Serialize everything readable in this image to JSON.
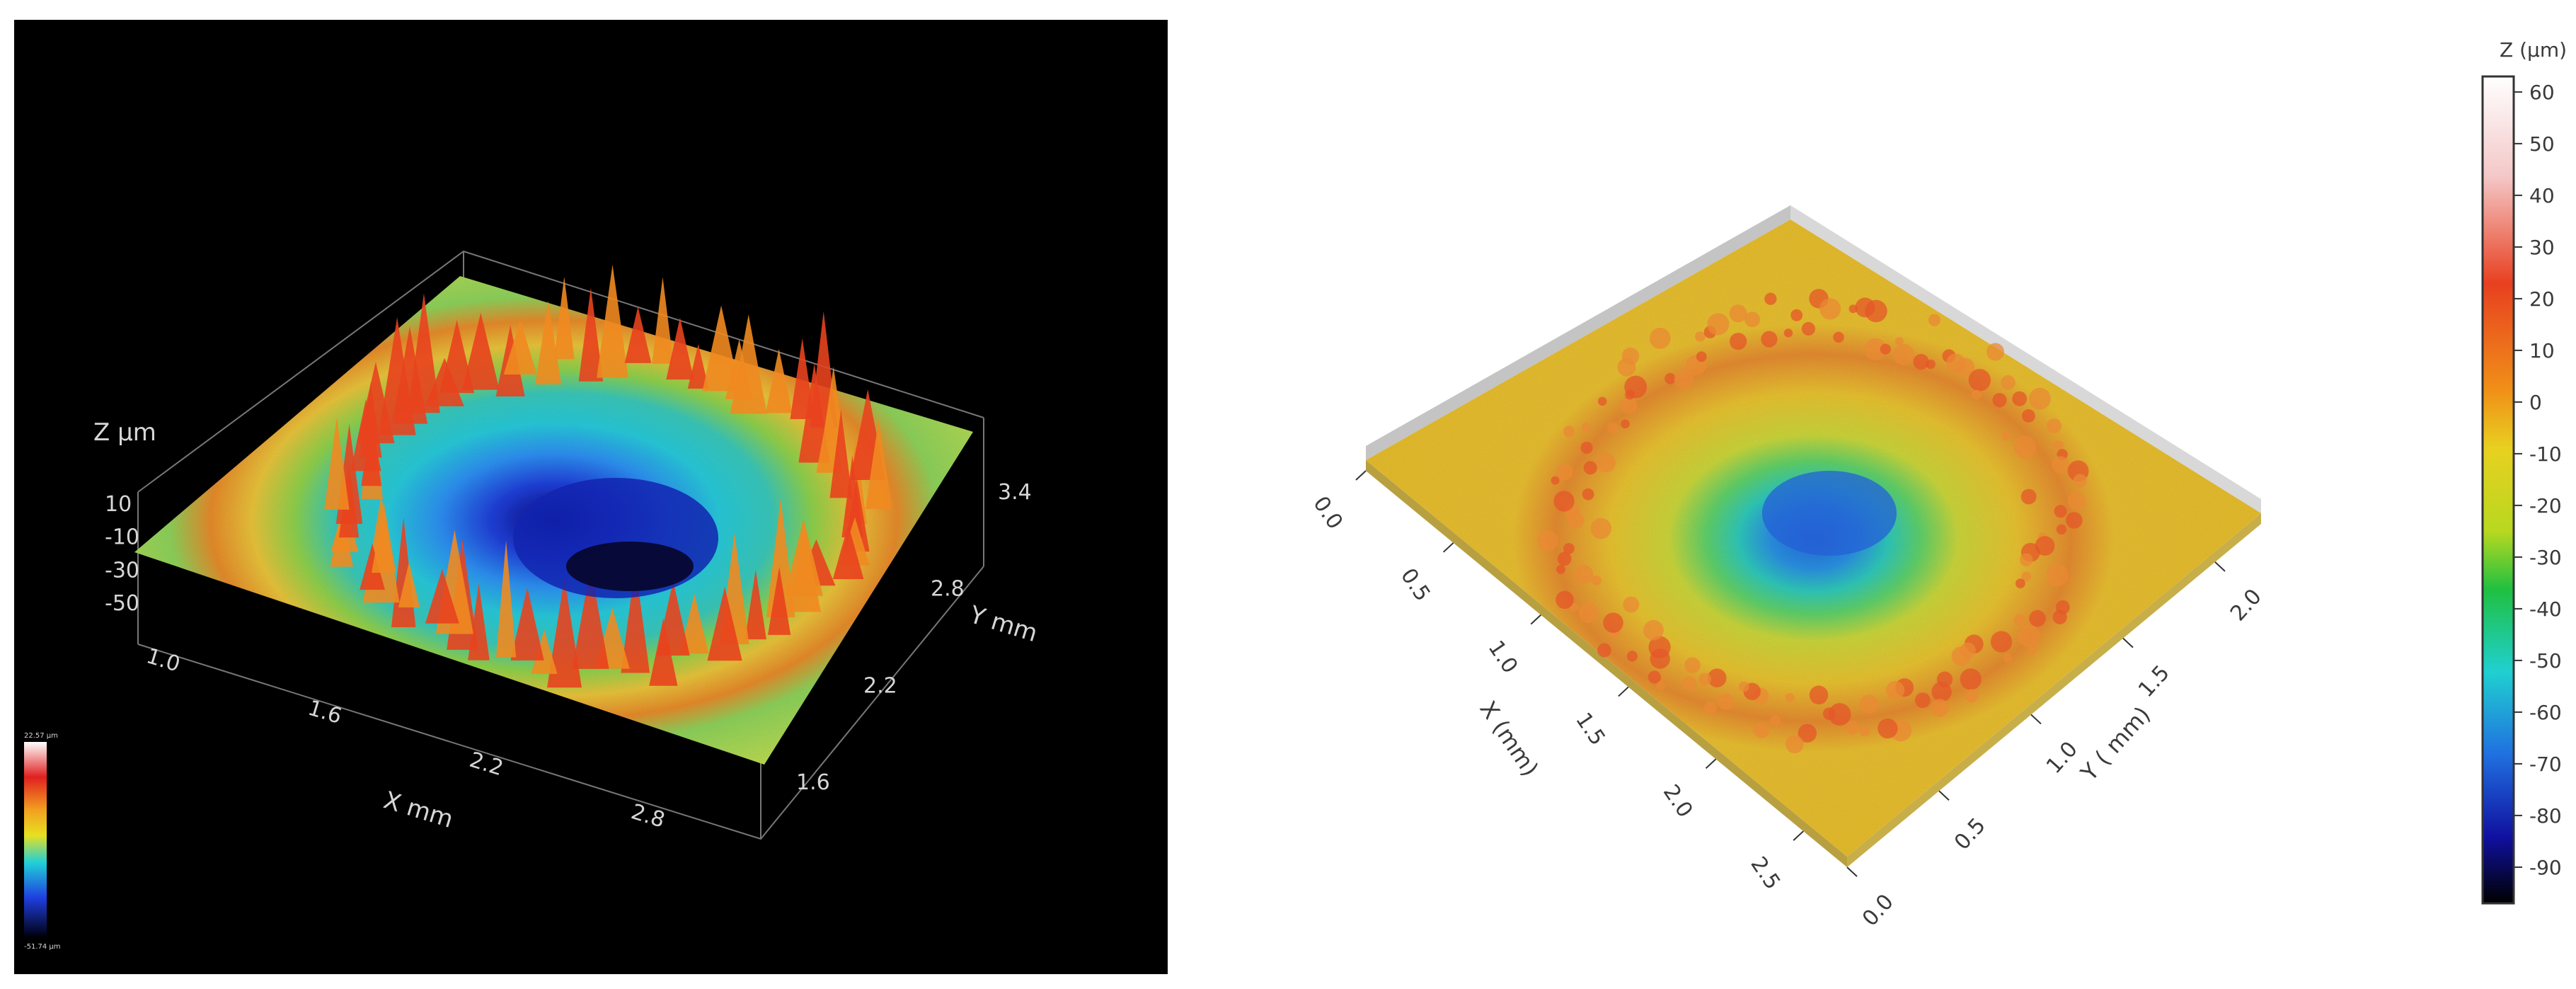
{
  "chart_data": [
    {
      "type": "heatmap",
      "title": "",
      "xlabel": "X mm",
      "ylabel": "Y mm",
      "zlabel": "Z µm",
      "x_ticks": [
        "1.0",
        "1.6",
        "2.2",
        "2.8"
      ],
      "y_ticks": [
        "1.6",
        "2.2",
        "2.8",
        "3.4"
      ],
      "z_ticks": [
        "10",
        "-10",
        "-30",
        "-50"
      ],
      "colorbar_max": "22.57 µm",
      "colorbar_min": "-51.74 µm",
      "background": "#000000"
    },
    {
      "type": "heatmap",
      "title": "",
      "xlabel": "X (mm)",
      "ylabel": "Y ( mm)",
      "x_ticks": [
        "0.0",
        "0.5",
        "1.0",
        "1.5",
        "2.0",
        "2.5"
      ],
      "y_ticks": [
        "0.0",
        "0.5",
        "1.0",
        "1.5",
        "2.0"
      ],
      "colorbar_title": "Z (µm)",
      "colorbar_ticks": [
        "60",
        "50",
        "40",
        "30",
        "20",
        "10",
        "0",
        "-10",
        "-20",
        "-30",
        "-40",
        "-50",
        "-60",
        "-70",
        "-80",
        "-90"
      ],
      "zlim": [
        -97,
        63
      ],
      "background": "#ffffff"
    }
  ]
}
